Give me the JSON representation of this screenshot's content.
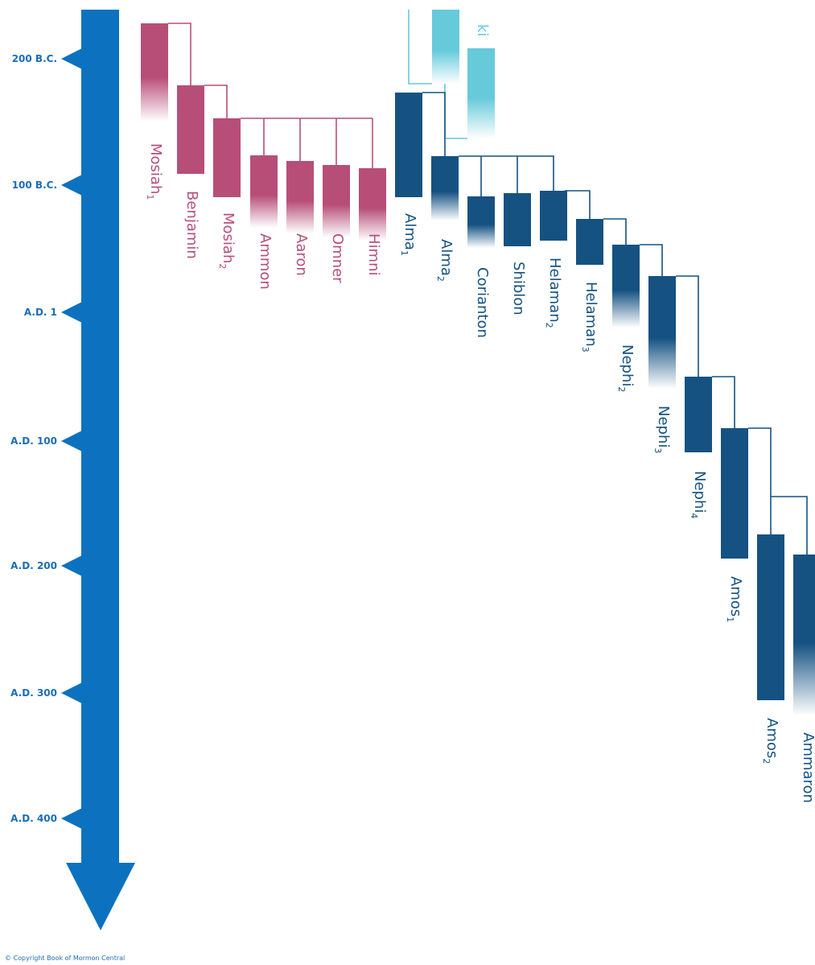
{
  "timeline": {
    "ticks": [
      {
        "label": "200 B.C."
      },
      {
        "label": "100 B.C."
      },
      {
        "label": "A.D. 1"
      },
      {
        "label": "A.D. 100"
      },
      {
        "label": "A.D. 200"
      },
      {
        "label": "A.D. 300"
      },
      {
        "label": "A.D. 400"
      }
    ]
  },
  "colors": {
    "axis": "#0c72bf",
    "tick_text": "#1c6db5",
    "pink": "#b74e78",
    "navy": "#155282",
    "cyan": "#66cadb"
  },
  "persons": [
    {
      "name": "Mosiah",
      "sub": "1",
      "color": "pink"
    },
    {
      "name": "Benjamin",
      "sub": "",
      "color": "pink"
    },
    {
      "name": "Mosiah",
      "sub": "2",
      "color": "pink"
    },
    {
      "name": "Ammon",
      "sub": "",
      "color": "pink"
    },
    {
      "name": "Aaron",
      "sub": "",
      "color": "pink"
    },
    {
      "name": "Omner",
      "sub": "",
      "color": "pink"
    },
    {
      "name": "Himni",
      "sub": "",
      "color": "pink"
    },
    {
      "name": "Alma",
      "sub": "1",
      "color": "navy"
    },
    {
      "name": "Alma",
      "sub": "2",
      "color": "navy"
    },
    {
      "name": "Corianton",
      "sub": "",
      "color": "navy"
    },
    {
      "name": "Shiblon",
      "sub": "",
      "color": "navy"
    },
    {
      "name": "Helaman",
      "sub": "2",
      "color": "navy"
    },
    {
      "name": "Helaman",
      "sub": "3",
      "color": "navy"
    },
    {
      "name": "Nephi",
      "sub": "2",
      "color": "navy"
    },
    {
      "name": "Nephi",
      "sub": "3",
      "color": "navy"
    },
    {
      "name": "Nephi",
      "sub": "4",
      "color": "navy"
    },
    {
      "name": "Amos",
      "sub": "1",
      "color": "navy"
    },
    {
      "name": "Amos",
      "sub": "2",
      "color": "navy"
    },
    {
      "name": "Ammaron",
      "sub": "",
      "color": "navy"
    },
    {
      "name": "ki",
      "sub": "",
      "color": "cyan"
    },
    {
      "name": "",
      "sub": "",
      "color": "cyan"
    }
  ],
  "copyright": "© Copyright Book of Mormon Central"
}
